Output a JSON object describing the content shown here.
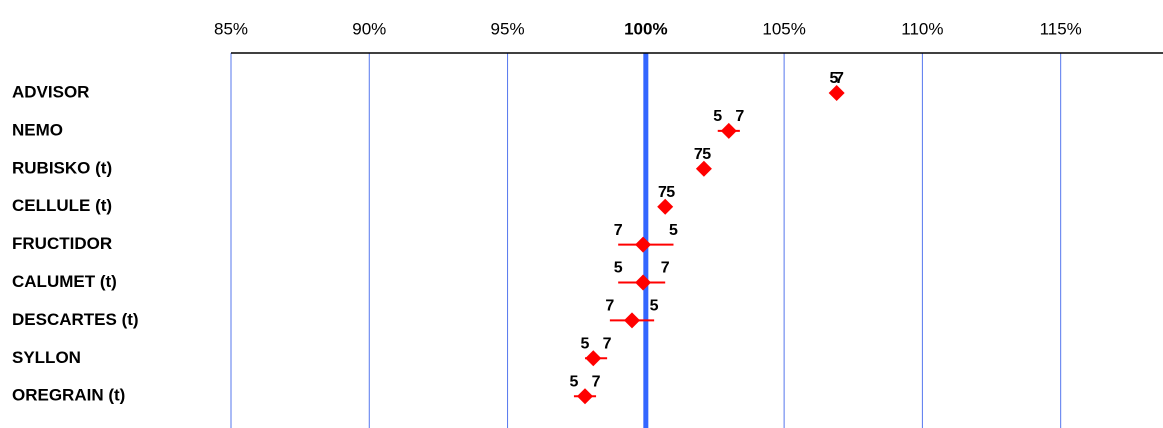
{
  "chart_data": {
    "type": "range-dot",
    "categories": [
      "ADVISOR",
      "NEMO",
      "RUBISKO (t)",
      "CELLULE (t)",
      "FRUCTIDOR",
      "CALUMET (t)",
      "DESCARTES (t)",
      "SYLLON",
      "OREGRAIN (t)"
    ],
    "values": [
      106.9,
      103.0,
      102.1,
      100.7,
      99.9,
      99.9,
      99.5,
      98.1,
      97.8
    ],
    "color": "#ff0000",
    "series": [
      {
        "name": "5",
        "values": [
          106.8,
          102.6,
          102.2,
          100.9,
          101.0,
          99.0,
          100.3,
          97.8,
          97.4
        ]
      },
      {
        "name": "7",
        "values": [
          107.0,
          103.4,
          101.9,
          100.6,
          99.0,
          100.7,
          98.7,
          98.6,
          98.2
        ]
      }
    ],
    "xlim": [
      85,
      118.7
    ],
    "xticks": [
      {
        "value": 85,
        "label": "85%"
      },
      {
        "value": 90,
        "label": "90%"
      },
      {
        "value": 95,
        "label": "95%"
      },
      {
        "value": 100,
        "label": "100%"
      },
      {
        "value": 105,
        "label": "105%"
      },
      {
        "value": 110,
        "label": "110%"
      },
      {
        "value": 115,
        "label": "115%"
      }
    ],
    "reference_line": 100,
    "grid": true,
    "grid_color": "#5577ee",
    "reference_color": "#3366ff"
  }
}
